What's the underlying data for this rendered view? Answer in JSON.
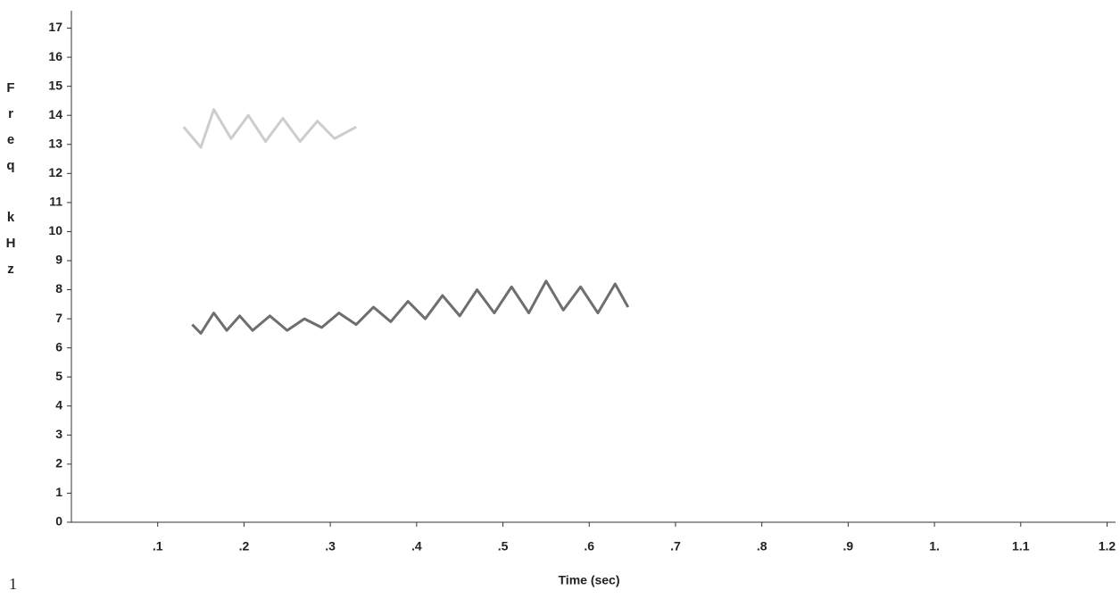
{
  "chart_data": {
    "type": "line",
    "xlabel": "Time (sec)",
    "ylabel": "Freq kHz",
    "footnote": "1",
    "xlim": [
      0,
      1.215
    ],
    "ylim": [
      0,
      17.6
    ],
    "xticks": [
      {
        "value": 0.1,
        "label": ".1"
      },
      {
        "value": 0.2,
        "label": ".2"
      },
      {
        "value": 0.3,
        "label": ".3"
      },
      {
        "value": 0.4,
        "label": ".4"
      },
      {
        "value": 0.5,
        "label": ".5"
      },
      {
        "value": 0.6,
        "label": ".6"
      },
      {
        "value": 0.7,
        "label": ".7"
      },
      {
        "value": 0.8,
        "label": ".8"
      },
      {
        "value": 0.9,
        "label": ".9"
      },
      {
        "value": 1,
        "label": "1."
      },
      {
        "value": 1.1,
        "label": "1.1"
      },
      {
        "value": 1.2,
        "label": "1.2"
      }
    ],
    "yticks": [
      0,
      1,
      2,
      3,
      4,
      5,
      6,
      7,
      8,
      9,
      10,
      11,
      12,
      13,
      14,
      15,
      16,
      17
    ],
    "series": [
      {
        "color": "#555555",
        "x": [
          0.14,
          0.15,
          0.165,
          0.18,
          0.195,
          0.21,
          0.23,
          0.25,
          0.27,
          0.29,
          0.31,
          0.33,
          0.35,
          0.37,
          0.39,
          0.41,
          0.43,
          0.45,
          0.47,
          0.49,
          0.51,
          0.53,
          0.55,
          0.57,
          0.59,
          0.61,
          0.63,
          0.645
        ],
        "values": [
          6.8,
          6.5,
          7.2,
          6.6,
          7.1,
          6.6,
          7.1,
          6.6,
          7.0,
          6.7,
          7.2,
          6.8,
          7.4,
          6.9,
          7.6,
          7.0,
          7.8,
          7.1,
          8.0,
          7.2,
          8.1,
          7.2,
          8.3,
          7.3,
          8.1,
          7.2,
          8.2,
          7.4
        ]
      },
      {
        "color": "#c4c4c4",
        "x": [
          0.13,
          0.15,
          0.165,
          0.185,
          0.205,
          0.225,
          0.245,
          0.265,
          0.285,
          0.305,
          0.33
        ],
        "values": [
          13.6,
          12.9,
          14.2,
          13.2,
          14.0,
          13.1,
          13.9,
          13.1,
          13.8,
          13.2,
          13.6
        ]
      }
    ]
  }
}
